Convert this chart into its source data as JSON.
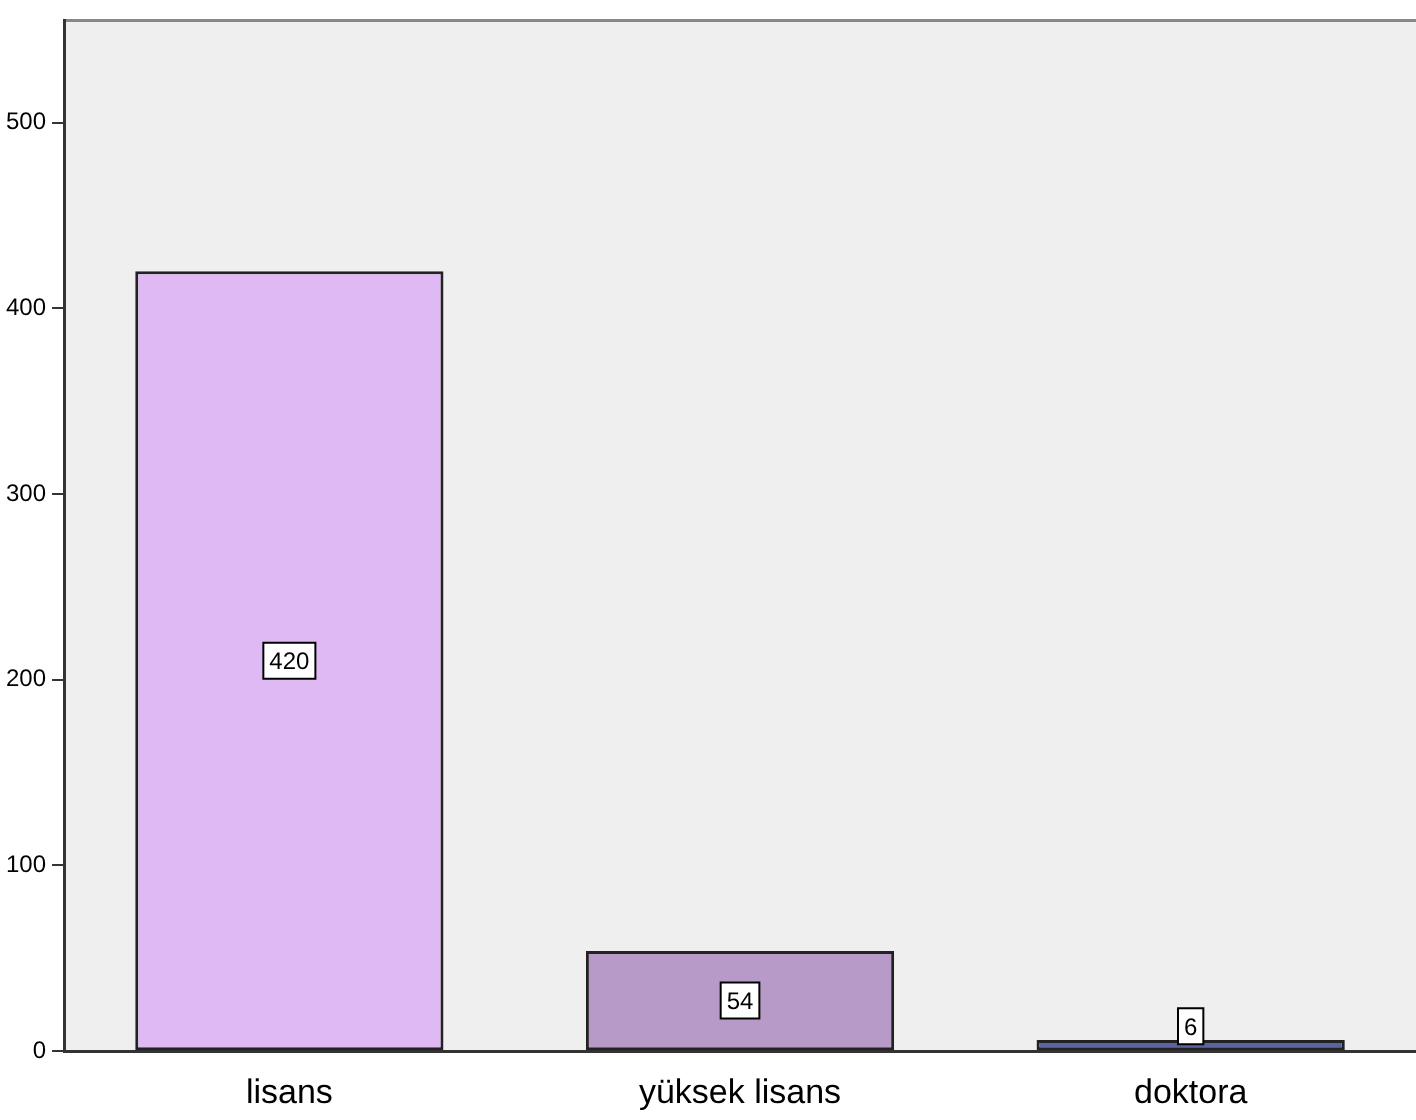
{
  "chart_data": {
    "type": "bar",
    "categories": [
      "lisans",
      "yüksek lisans",
      "doktora"
    ],
    "values": [
      420,
      54,
      6
    ],
    "colors": [
      "#dfb9f3",
      "#b89ac8",
      "#5d62a0"
    ],
    "ylim": [
      0,
      555
    ],
    "yticks": [
      0,
      100,
      200,
      300,
      400,
      500
    ],
    "grid": false,
    "legend": false,
    "data_labels": true
  }
}
